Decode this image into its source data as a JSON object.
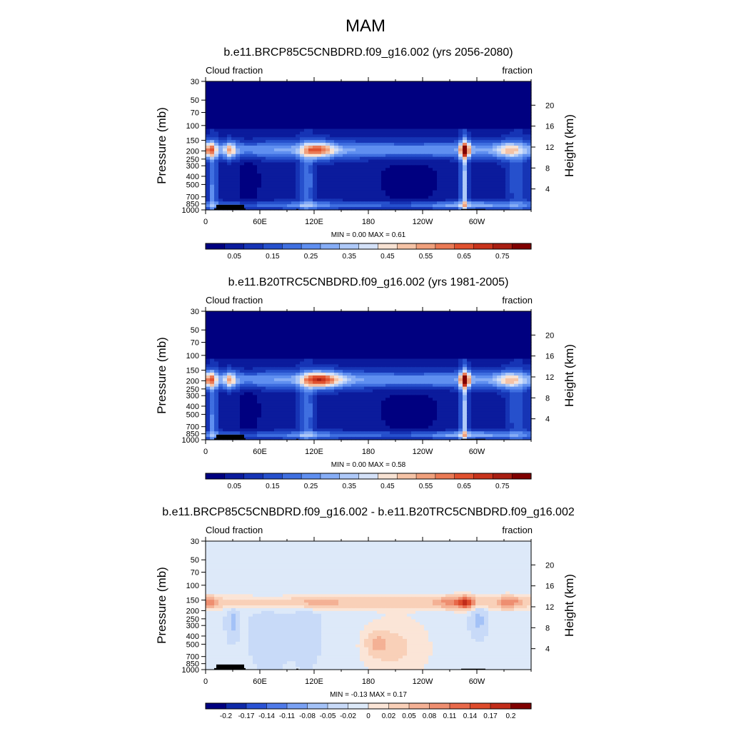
{
  "figure": {
    "title": "MAM"
  },
  "colors": {
    "abs_scale": [
      "#000080",
      "#0b1b9c",
      "#1634b5",
      "#2650cc",
      "#3f6fe0",
      "#5f8ff0",
      "#86adf6",
      "#aec9f8",
      "#d4e1f8",
      "#f7e2d3",
      "#f5c3a6",
      "#f0a07c",
      "#ea7a55",
      "#e0512f",
      "#c8331c",
      "#a81e12",
      "#800000"
    ],
    "diff_scale": [
      "#000080",
      "#0f2aa8",
      "#2a52d4",
      "#4f7ae8",
      "#7aa1f3",
      "#a4c2f7",
      "#c8daf8",
      "#dde9f9",
      "#fbe5d7",
      "#f9d0b8",
      "#f4b195",
      "#ee8e70",
      "#e8694a",
      "#dd4a2b",
      "#c12c19",
      "#800000"
    ],
    "land": "#000000"
  },
  "chart_data": [
    {
      "type": "heatmap",
      "title": "b.e11.BRCP85C5CNBDRD.f09_g16.002 (yrs 2056-2080)",
      "left_label": "Cloud fraction",
      "right_label": "fraction",
      "ylabel": "Pressure (mb)",
      "y2label": "Height (km)",
      "x_ticks": [
        "0",
        "60E",
        "120E",
        "180",
        "120W",
        "60W"
      ],
      "y_ticks": [
        "30",
        "50",
        "70",
        "100",
        "150",
        "200",
        "250",
        "300",
        "400",
        "500",
        "700",
        "850",
        "1000"
      ],
      "y2_ticks": [
        "20",
        "16",
        "12",
        "8",
        "4"
      ],
      "xlim": [
        0,
        360
      ],
      "ylim": [
        1000,
        30
      ],
      "stats": "MIN =   0.00  MAX =   0.61",
      "min": 0.0,
      "max": 0.61,
      "colorbar_labels": [
        "0.05",
        "0.15",
        "0.25",
        "0.35",
        "0.45",
        "0.55",
        "0.65",
        "0.75"
      ],
      "variant": "future"
    },
    {
      "type": "heatmap",
      "title": "b.e11.B20TRC5CNBDRD.f09_g16.002 (yrs 1981-2005)",
      "left_label": "Cloud fraction",
      "right_label": "fraction",
      "ylabel": "Pressure (mb)",
      "y2label": "Height (km)",
      "x_ticks": [
        "0",
        "60E",
        "120E",
        "180",
        "120W",
        "60W"
      ],
      "y_ticks": [
        "30",
        "50",
        "70",
        "100",
        "150",
        "200",
        "250",
        "300",
        "400",
        "500",
        "700",
        "850",
        "1000"
      ],
      "y2_ticks": [
        "20",
        "16",
        "12",
        "8",
        "4"
      ],
      "xlim": [
        0,
        360
      ],
      "ylim": [
        1000,
        30
      ],
      "stats": "MIN =   0.00  MAX =   0.58",
      "min": 0.0,
      "max": 0.58,
      "colorbar_labels": [
        "0.05",
        "0.15",
        "0.25",
        "0.35",
        "0.45",
        "0.55",
        "0.65",
        "0.75"
      ],
      "variant": "hist"
    },
    {
      "type": "heatmap",
      "title": "b.e11.BRCP85C5CNBDRD.f09_g16.002 - b.e11.B20TRC5CNBDRD.f09_g16.002",
      "left_label": "Cloud fraction",
      "right_label": "fraction",
      "ylabel": "Pressure (mb)",
      "y2label": "Height (km)",
      "x_ticks": [
        "0",
        "60E",
        "120E",
        "180",
        "120W",
        "60W"
      ],
      "y_ticks": [
        "30",
        "50",
        "70",
        "100",
        "150",
        "200",
        "250",
        "300",
        "400",
        "500",
        "700",
        "850",
        "1000"
      ],
      "y2_ticks": [
        "20",
        "16",
        "12",
        "8",
        "4"
      ],
      "xlim": [
        0,
        360
      ],
      "ylim": [
        1000,
        30
      ],
      "stats": "MIN =  -0.13  MAX =   0.17",
      "min": -0.13,
      "max": 0.17,
      "colorbar_labels": [
        "-0.2",
        "-0.17",
        "-0.14",
        "-0.11",
        "-0.08",
        "-0.05",
        "-0.02",
        "0",
        "0.02",
        "0.05",
        "0.08",
        "0.11",
        "0.14",
        "0.17",
        "0.2"
      ],
      "variant": "diff"
    }
  ]
}
